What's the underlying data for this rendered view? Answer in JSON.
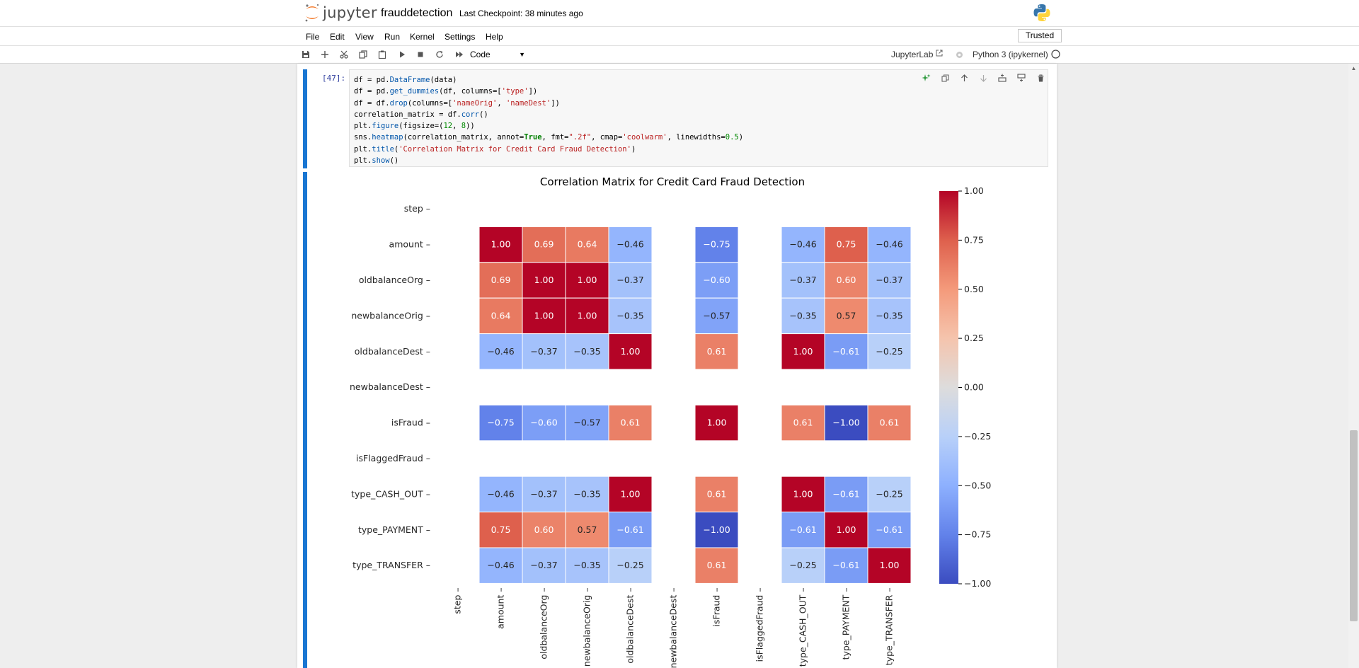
{
  "header": {
    "logo_text": "jupyter",
    "notebook_name": "frauddetection",
    "checkpoint": "Last Checkpoint: 38 minutes ago"
  },
  "menu": {
    "items": [
      "File",
      "Edit",
      "View",
      "Run",
      "Kernel",
      "Settings",
      "Help"
    ],
    "trusted": "Trusted"
  },
  "toolbar": {
    "cell_type": "Code",
    "jupyterlab_label": "JupyterLab",
    "kernel": "Python 3 (ipykernel)"
  },
  "cell": {
    "prompt": "[47]:"
  },
  "chart_data": {
    "type": "heatmap",
    "title": "Correlation Matrix for Credit Card Fraud Detection",
    "row_labels": [
      "step",
      "amount",
      "oldbalanceOrg",
      "newbalanceOrig",
      "oldbalanceDest",
      "newbalanceDest",
      "isFraud",
      "isFlaggedFraud",
      "type_CASH_OUT",
      "type_PAYMENT",
      "type_TRANSFER"
    ],
    "col_labels": [
      "step",
      "amount",
      "oldbalanceOrg",
      "newbalanceOrig",
      "oldbalanceDest",
      "newbalanceDest",
      "isFraud",
      "isFlaggedFraud",
      "type_CASH_OUT",
      "type_PAYMENT",
      "type_TRANSFER"
    ],
    "values": [
      [
        null,
        null,
        null,
        null,
        null,
        null,
        null,
        null,
        null,
        null,
        null
      ],
      [
        null,
        1.0,
        0.69,
        0.64,
        -0.46,
        null,
        -0.75,
        null,
        -0.46,
        0.75,
        -0.46
      ],
      [
        null,
        0.69,
        1.0,
        1.0,
        -0.37,
        null,
        -0.6,
        null,
        -0.37,
        0.6,
        -0.37
      ],
      [
        null,
        0.64,
        1.0,
        1.0,
        -0.35,
        null,
        -0.57,
        null,
        -0.35,
        0.57,
        -0.35
      ],
      [
        null,
        -0.46,
        -0.37,
        -0.35,
        1.0,
        null,
        0.61,
        null,
        1.0,
        -0.61,
        -0.25
      ],
      [
        null,
        null,
        null,
        null,
        null,
        null,
        null,
        null,
        null,
        null,
        null
      ],
      [
        null,
        -0.75,
        -0.6,
        -0.57,
        0.61,
        null,
        1.0,
        null,
        0.61,
        -1.0,
        0.61
      ],
      [
        null,
        null,
        null,
        null,
        null,
        null,
        null,
        null,
        null,
        null,
        null
      ],
      [
        null,
        -0.46,
        -0.37,
        -0.35,
        1.0,
        null,
        0.61,
        null,
        1.0,
        -0.61,
        -0.25
      ],
      [
        null,
        0.75,
        0.6,
        0.57,
        -0.61,
        null,
        -1.0,
        null,
        -0.61,
        1.0,
        -0.61
      ],
      [
        null,
        -0.46,
        -0.37,
        -0.35,
        -0.25,
        null,
        0.61,
        null,
        -0.25,
        -0.61,
        1.0
      ]
    ],
    "colormap": "coolwarm",
    "vmin": -1.0,
    "vmax": 1.0,
    "colorbar_ticks": [
      "1.00",
      "0.75",
      "0.50",
      "0.25",
      "0.00",
      "−0.25",
      "−0.50",
      "−0.75",
      "−1.00"
    ]
  }
}
